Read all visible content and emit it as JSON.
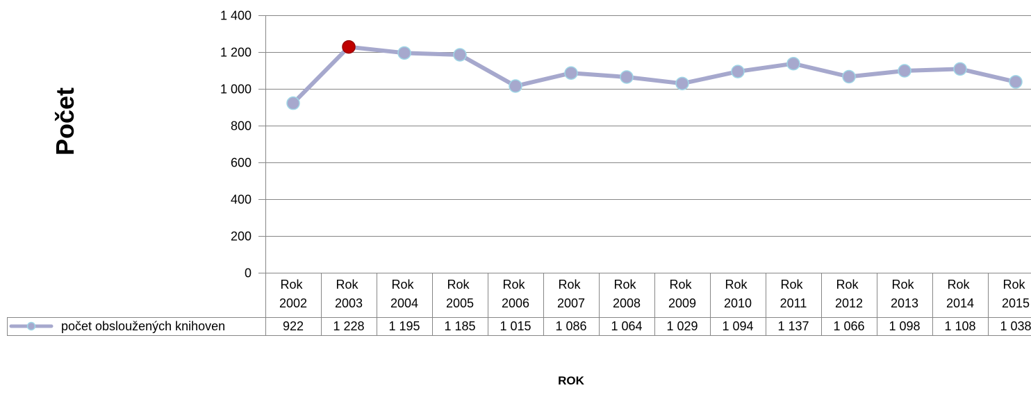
{
  "chart_data": {
    "type": "line",
    "categories": [
      "Rok 2002",
      "Rok 2003",
      "Rok 2004",
      "Rok 2005",
      "Rok 2006",
      "Rok 2007",
      "Rok 2008",
      "Rok 2009",
      "Rok 2010",
      "Rok 2011",
      "Rok 2012",
      "Rok 2013",
      "Rok 2014",
      "Rok 2015"
    ],
    "series": [
      {
        "name": "počet obsloužených knihoven",
        "values": [
          922,
          1228,
          1195,
          1185,
          1015,
          1086,
          1064,
          1029,
          1094,
          1137,
          1066,
          1098,
          1108,
          1038
        ]
      }
    ],
    "xlabel": "ROK",
    "ylabel": "Počet",
    "ylim": [
      0,
      1400
    ],
    "yticks": [
      0,
      200,
      400,
      600,
      800,
      1000,
      1200,
      1400
    ],
    "grid": true,
    "data_table": true,
    "legend": "bottom-left",
    "highlight_index": 1,
    "colors": {
      "line": "#A6A8CD",
      "marker_fill": "#A6A8CD",
      "marker_stroke": "#9FD6E6",
      "highlight_fill": "#C00000",
      "highlight_stroke": "#9B0000",
      "gridline": "#868686"
    }
  }
}
